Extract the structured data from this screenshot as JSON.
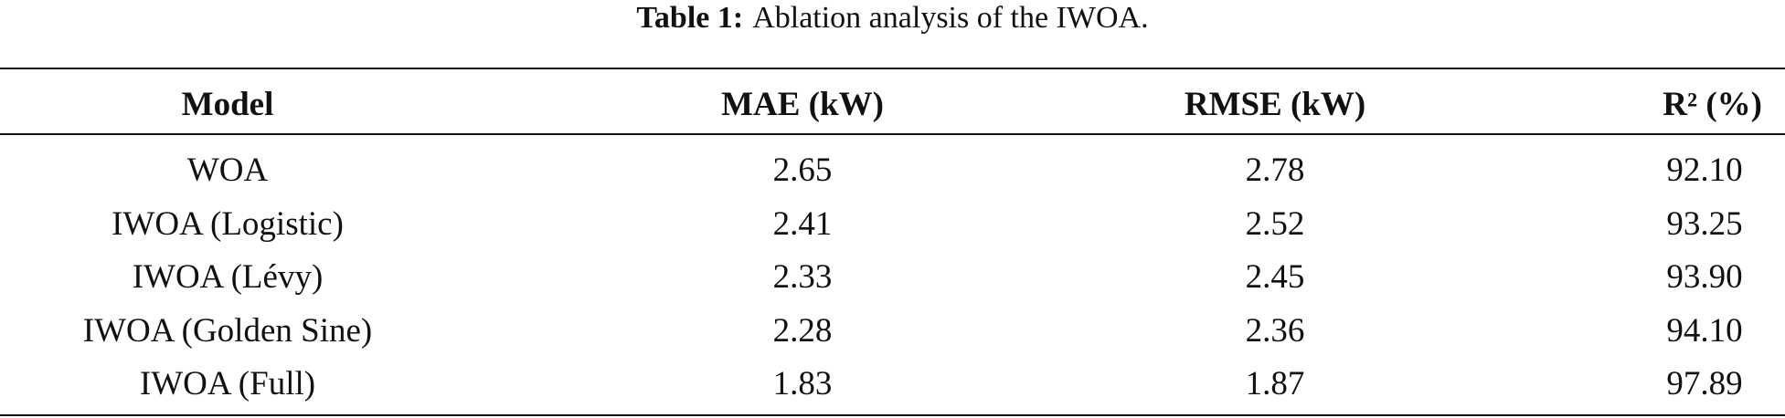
{
  "caption": {
    "label": "Table 1:",
    "text": "Ablation analysis of the IWOA."
  },
  "table": {
    "header": [
      "Model",
      "MAE (kW)",
      "RMSE (kW)",
      "R² (%)"
    ],
    "rows": [
      [
        "WOA",
        "2.65",
        "2.78",
        "92.10"
      ],
      [
        "IWOA (Logistic)",
        "2.41",
        "2.52",
        "93.25"
      ],
      [
        "IWOA (Lévy)",
        "2.33",
        "2.45",
        "93.90"
      ],
      [
        "IWOA (Golden Sine)",
        "2.28",
        "2.36",
        "94.10"
      ],
      [
        "IWOA (Full)",
        "1.83",
        "1.87",
        "97.89"
      ]
    ]
  }
}
